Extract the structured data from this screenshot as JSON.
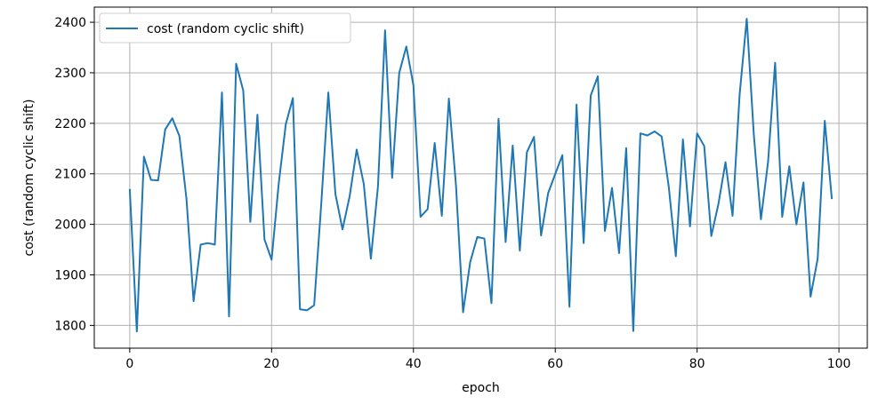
{
  "chart_data": {
    "type": "line",
    "title": "",
    "xlabel": "epoch",
    "ylabel": "cost (random cyclic shift)",
    "xlim": [
      -5,
      104
    ],
    "ylim": [
      1755,
      2430
    ],
    "xticks": [
      0,
      20,
      40,
      60,
      80,
      100
    ],
    "yticks": [
      1800,
      1900,
      2000,
      2100,
      2200,
      2300,
      2400
    ],
    "grid": true,
    "legend_position": "upper-left",
    "series": [
      {
        "name": "cost (random cyclic shift)",
        "color": "#1f77b4",
        "x": [
          0,
          1,
          2,
          3,
          4,
          5,
          6,
          7,
          8,
          9,
          10,
          11,
          12,
          13,
          14,
          15,
          16,
          17,
          18,
          19,
          20,
          21,
          22,
          23,
          24,
          25,
          26,
          27,
          28,
          29,
          30,
          31,
          32,
          33,
          34,
          35,
          36,
          37,
          38,
          39,
          40,
          41,
          42,
          43,
          44,
          45,
          46,
          47,
          48,
          49,
          50,
          51,
          52,
          53,
          54,
          55,
          56,
          57,
          58,
          59,
          60,
          61,
          62,
          63,
          64,
          65,
          66,
          67,
          68,
          69,
          70,
          71,
          72,
          73,
          74,
          75,
          76,
          77,
          78,
          79,
          80,
          81,
          82,
          83,
          84,
          85,
          86,
          87,
          88,
          89,
          90,
          91,
          92,
          93,
          94,
          95,
          96,
          97,
          98,
          99
        ],
        "values": [
          2070,
          1788,
          2134,
          2088,
          2087,
          2188,
          2210,
          2175,
          2050,
          1848,
          1960,
          1963,
          1960,
          2261,
          1818,
          2318,
          2265,
          2005,
          2217,
          1970,
          1930,
          2080,
          2198,
          2250,
          1832,
          1830,
          1840,
          2040,
          2261,
          2060,
          1990,
          2055,
          2148,
          2080,
          1932,
          2075,
          2384,
          2092,
          2300,
          2352,
          2275,
          2015,
          2030,
          2161,
          2017,
          2249,
          2077,
          1826,
          1925,
          1975,
          1972,
          1844,
          2209,
          1965,
          2156,
          1948,
          2143,
          2173,
          1978,
          2062,
          2100,
          2137,
          1837,
          2237,
          1963,
          2255,
          2293,
          1987,
          2072,
          1943,
          2151,
          1789,
          2180,
          2176,
          2184,
          2174,
          2075,
          1937,
          2168,
          1996,
          2180,
          2155,
          1977,
          2040,
          2123,
          2017,
          2258,
          2407,
          2177,
          2010,
          2123,
          2320,
          2015,
          2115,
          2000,
          2083,
          1857,
          1932,
          2205,
          2050
        ]
      }
    ]
  }
}
